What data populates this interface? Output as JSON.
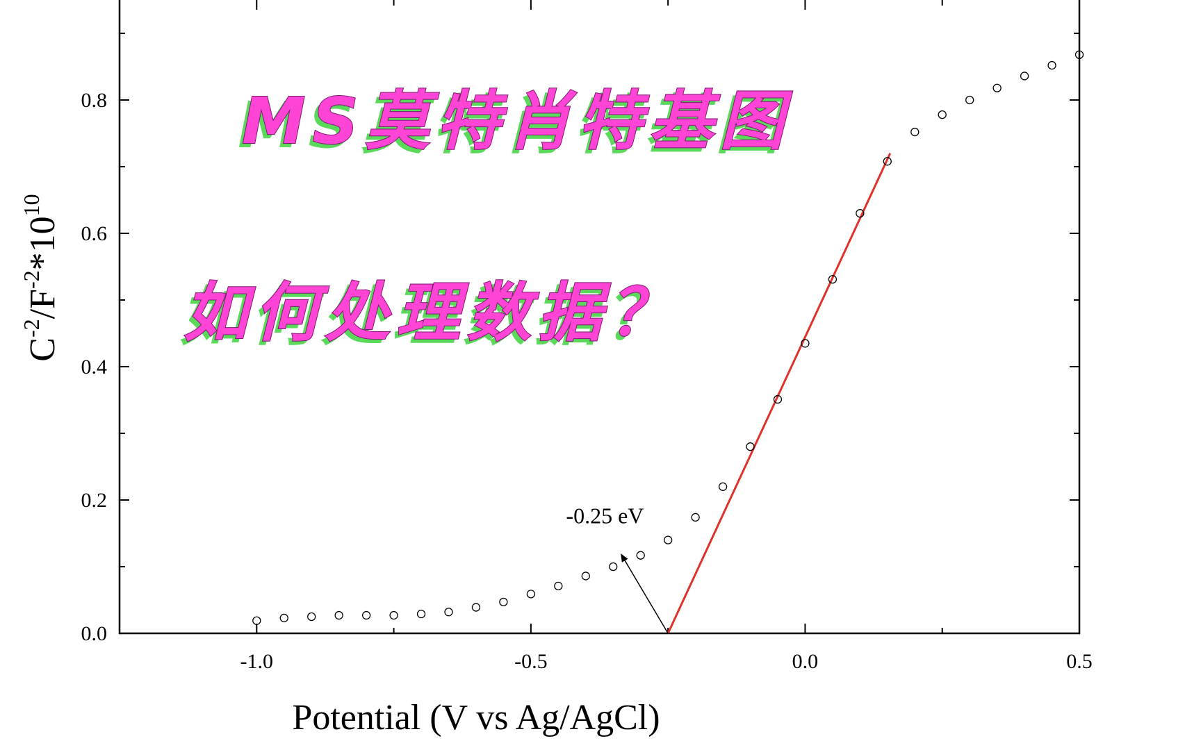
{
  "chart_data": {
    "type": "scatter",
    "xlabel": "Potential (V vs Ag/AgCl)",
    "ylabel_base": "C",
    "ylabel_sup1": "-2",
    "ylabel_mid": "/F",
    "ylabel_sup2": "-2",
    "ylabel_tail": "*10",
    "ylabel_sup3": "10",
    "xlim": [
      -1.25,
      0.5
    ],
    "ylim": [
      0.0,
      0.95
    ],
    "xticks": [
      -1.0,
      -0.5,
      0.0,
      0.5
    ],
    "xtick_labels": [
      "-1.0",
      "-0.5",
      "0.0",
      "0.5"
    ],
    "yticks": [
      0.0,
      0.2,
      0.4,
      0.6,
      0.8
    ],
    "ytick_labels": [
      "0.0",
      "0.2",
      "0.4",
      "0.6",
      "0.8"
    ],
    "grid": false,
    "series": [
      {
        "marker": "open-circle",
        "x": [
          -1.0,
          -0.95,
          -0.9,
          -0.85,
          -0.8,
          -0.75,
          -0.7,
          -0.65,
          -0.6,
          -0.55,
          -0.5,
          -0.45,
          -0.4,
          -0.35,
          -0.3,
          -0.25,
          -0.2,
          -0.15,
          -0.1,
          -0.05,
          0.0,
          0.05,
          0.1,
          0.15,
          0.2,
          0.25,
          0.3,
          0.35,
          0.4,
          0.45,
          0.5
        ],
        "y": [
          0.019,
          0.023,
          0.025,
          0.027,
          0.027,
          0.027,
          0.029,
          0.032,
          0.039,
          0.047,
          0.059,
          0.071,
          0.086,
          0.1,
          0.117,
          0.14,
          0.174,
          0.22,
          0.28,
          0.351,
          0.435,
          0.531,
          0.63,
          0.708,
          0.752,
          0.778,
          0.8,
          0.818,
          0.836,
          0.852,
          0.868
        ]
      }
    ],
    "fit_line": {
      "color": "#e0312b",
      "x": [
        -0.25,
        0.155
      ],
      "y": [
        0.0,
        0.72
      ]
    },
    "annotation": {
      "text": "-0.25 eV",
      "arrow_from": [
        -0.25,
        0.0
      ],
      "arrow_to": [
        -0.335,
        0.118
      ],
      "text_at": [
        -0.365,
        0.165
      ]
    }
  },
  "overlay": {
    "line1": "MS莫特肖特基图",
    "line2": "如何处理数据？"
  },
  "colors": {
    "axis": "#000000",
    "marker_stroke": "#000000",
    "fit_line": "#e0312b",
    "overlay_fill": "#ff44d6",
    "overlay_shadow": "#5bd95b"
  }
}
